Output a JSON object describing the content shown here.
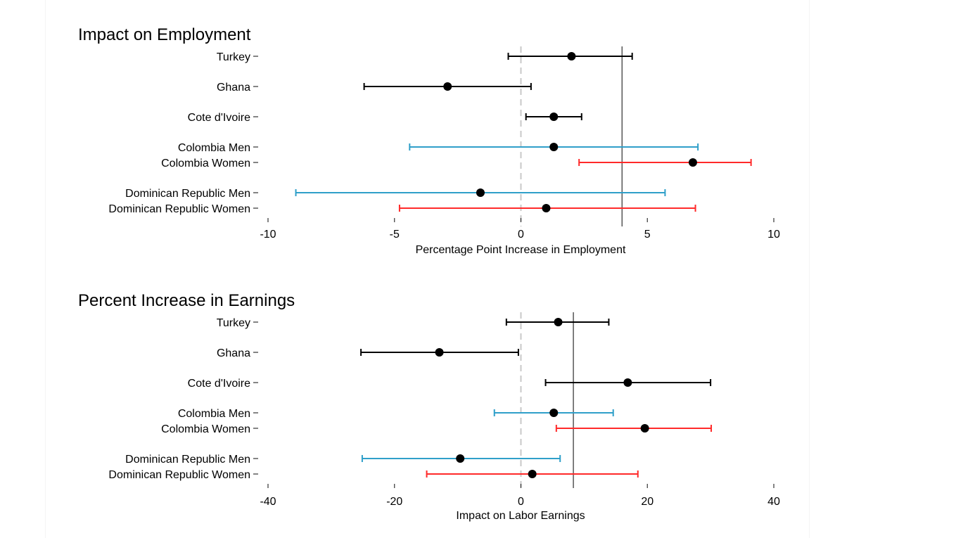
{
  "colors": {
    "default": "#000000",
    "men": "#2f9fc9",
    "women": "#ff2a2a",
    "zero_line": "#c8c8c8",
    "ref_line": "#555555"
  },
  "chart_data": [
    {
      "type": "scatter",
      "title": "Impact on Employment",
      "xlabel": "Percentage Point Increase in Employment",
      "ylabel": "",
      "xlim": [
        -10,
        10
      ],
      "xticks": [
        -10,
        -5,
        0,
        5,
        10
      ],
      "reference_line": 4,
      "categories": [
        "Turkey",
        "Ghana",
        "Cote d'Ivoire",
        "Colombia Men",
        "Colombia Women",
        "Dominican Republic Men",
        "Dominican Republic Women"
      ],
      "series": [
        {
          "name": "Turkey",
          "group": "default",
          "estimate": 2.0,
          "ci": [
            -0.5,
            4.4
          ]
        },
        {
          "name": "Ghana",
          "group": "default",
          "estimate": -2.9,
          "ci": [
            -6.2,
            0.4
          ]
        },
        {
          "name": "Cote d'Ivoire",
          "group": "default",
          "estimate": 1.3,
          "ci": [
            0.2,
            2.4
          ]
        },
        {
          "name": "Colombia Men",
          "group": "men",
          "estimate": 1.3,
          "ci": [
            -4.4,
            7.0
          ]
        },
        {
          "name": "Colombia Women",
          "group": "women",
          "estimate": 6.8,
          "ci": [
            2.3,
            9.1
          ]
        },
        {
          "name": "Dominican Republic Men",
          "group": "men",
          "estimate": -1.6,
          "ci": [
            -8.9,
            5.7
          ]
        },
        {
          "name": "Dominican Republic Women",
          "group": "women",
          "estimate": 1.0,
          "ci": [
            -4.8,
            6.9
          ]
        }
      ]
    },
    {
      "type": "scatter",
      "title": "Percent Increase in Earnings",
      "xlabel": "Impact on Labor Earnings",
      "ylabel": "",
      "xlim": [
        -40,
        40
      ],
      "xticks": [
        -40,
        -20,
        0,
        20,
        40
      ],
      "reference_line": 8.3,
      "categories": [
        "Turkey",
        "Ghana",
        "Cote d'Ivoire",
        "Colombia Men",
        "Colombia Women",
        "Dominican Republic Men",
        "Dominican Republic Women"
      ],
      "series": [
        {
          "name": "Turkey",
          "group": "default",
          "estimate": 5.9,
          "ci": [
            -2.3,
            13.9
          ]
        },
        {
          "name": "Ghana",
          "group": "default",
          "estimate": -12.9,
          "ci": [
            -25.3,
            -0.4
          ]
        },
        {
          "name": "Cote d'Ivoire",
          "group": "default",
          "estimate": 16.9,
          "ci": [
            3.9,
            30.0
          ]
        },
        {
          "name": "Colombia Men",
          "group": "men",
          "estimate": 5.2,
          "ci": [
            -4.2,
            14.6
          ]
        },
        {
          "name": "Colombia Women",
          "group": "women",
          "estimate": 19.6,
          "ci": [
            5.6,
            30.1
          ]
        },
        {
          "name": "Dominican Republic Men",
          "group": "men",
          "estimate": -9.6,
          "ci": [
            -25.1,
            6.2
          ]
        },
        {
          "name": "Dominican Republic Women",
          "group": "women",
          "estimate": 1.8,
          "ci": [
            -14.9,
            18.5
          ]
        }
      ]
    }
  ]
}
